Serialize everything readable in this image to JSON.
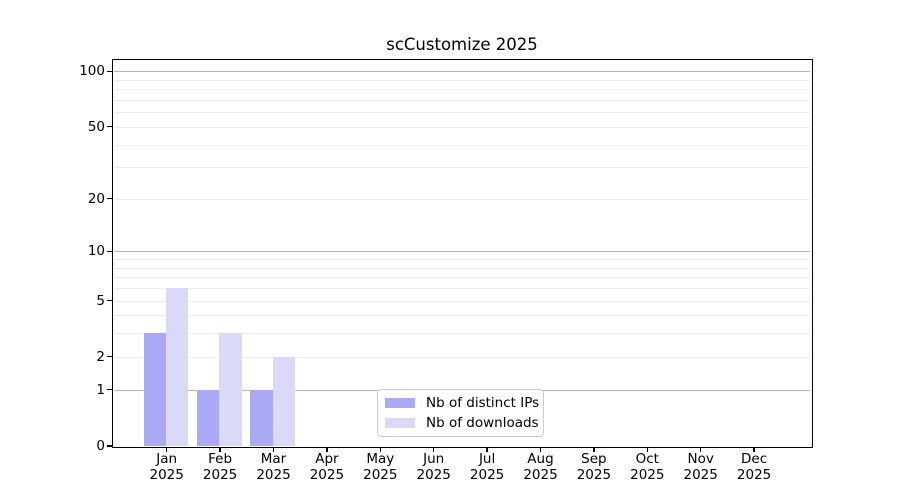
{
  "chart_data": {
    "type": "bar",
    "title": "scCustomize 2025",
    "xlabel": "",
    "ylabel": "",
    "year_label": "2025",
    "categories": [
      "Jan",
      "Feb",
      "Mar",
      "Apr",
      "May",
      "Jun",
      "Jul",
      "Aug",
      "Sep",
      "Oct",
      "Nov",
      "Dec"
    ],
    "series": [
      {
        "name": "Nb of distinct IPs",
        "color": "#a9a9f5",
        "values": [
          3,
          1,
          1,
          0,
          0,
          0,
          0,
          0,
          0,
          0,
          0,
          0
        ]
      },
      {
        "name": "Nb of downloads",
        "color": "#dadaf8",
        "values": [
          6,
          3,
          2,
          0,
          0,
          0,
          0,
          0,
          0,
          0,
          0,
          0
        ]
      }
    ],
    "yscale": "log1p",
    "ylim": [
      0,
      115
    ],
    "yticks": [
      0,
      1,
      2,
      5,
      10,
      20,
      50,
      100
    ],
    "grid_major_values": [
      1,
      10,
      100
    ],
    "grid_minor_values": [
      2,
      3,
      4,
      5,
      6,
      7,
      8,
      9,
      20,
      30,
      40,
      50,
      60,
      70,
      80,
      90
    ],
    "grid": "on",
    "legend_position": "bottom-center"
  },
  "colors": {
    "grid_major": "#b4b4b4",
    "grid_minor": "#ebebeb",
    "spine": "#000000",
    "background": "#ffffff",
    "legend_border": "#cccccc"
  }
}
